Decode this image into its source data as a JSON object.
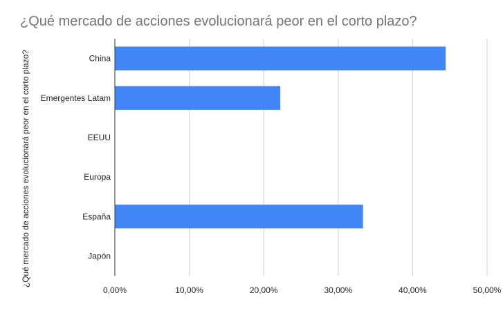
{
  "chart_data": {
    "type": "bar",
    "orientation": "horizontal",
    "title": "¿Qué mercado de acciones evolucionará peor en el corto plazo?",
    "ylabel": "¿Qué mercado de acciones evolucionará peor en el corto plazo?",
    "xlabel": "",
    "categories": [
      "China",
      "Emergentes Latam",
      "EEUU",
      "Europa",
      "España",
      "Japón"
    ],
    "values": [
      44.44,
      22.22,
      0,
      0,
      33.33,
      0
    ],
    "value_unit": "%",
    "xlim": [
      0,
      50
    ],
    "x_ticks": [
      0,
      10,
      20,
      30,
      40,
      50
    ],
    "x_tick_labels": [
      "0,00%",
      "10,00%",
      "20,00%",
      "30,00%",
      "40,00%",
      "50,00%"
    ],
    "grid": true,
    "legend": "none",
    "bar_color": "#4285f4",
    "grid_color": "#cccccc",
    "axis_color": "#333333"
  }
}
